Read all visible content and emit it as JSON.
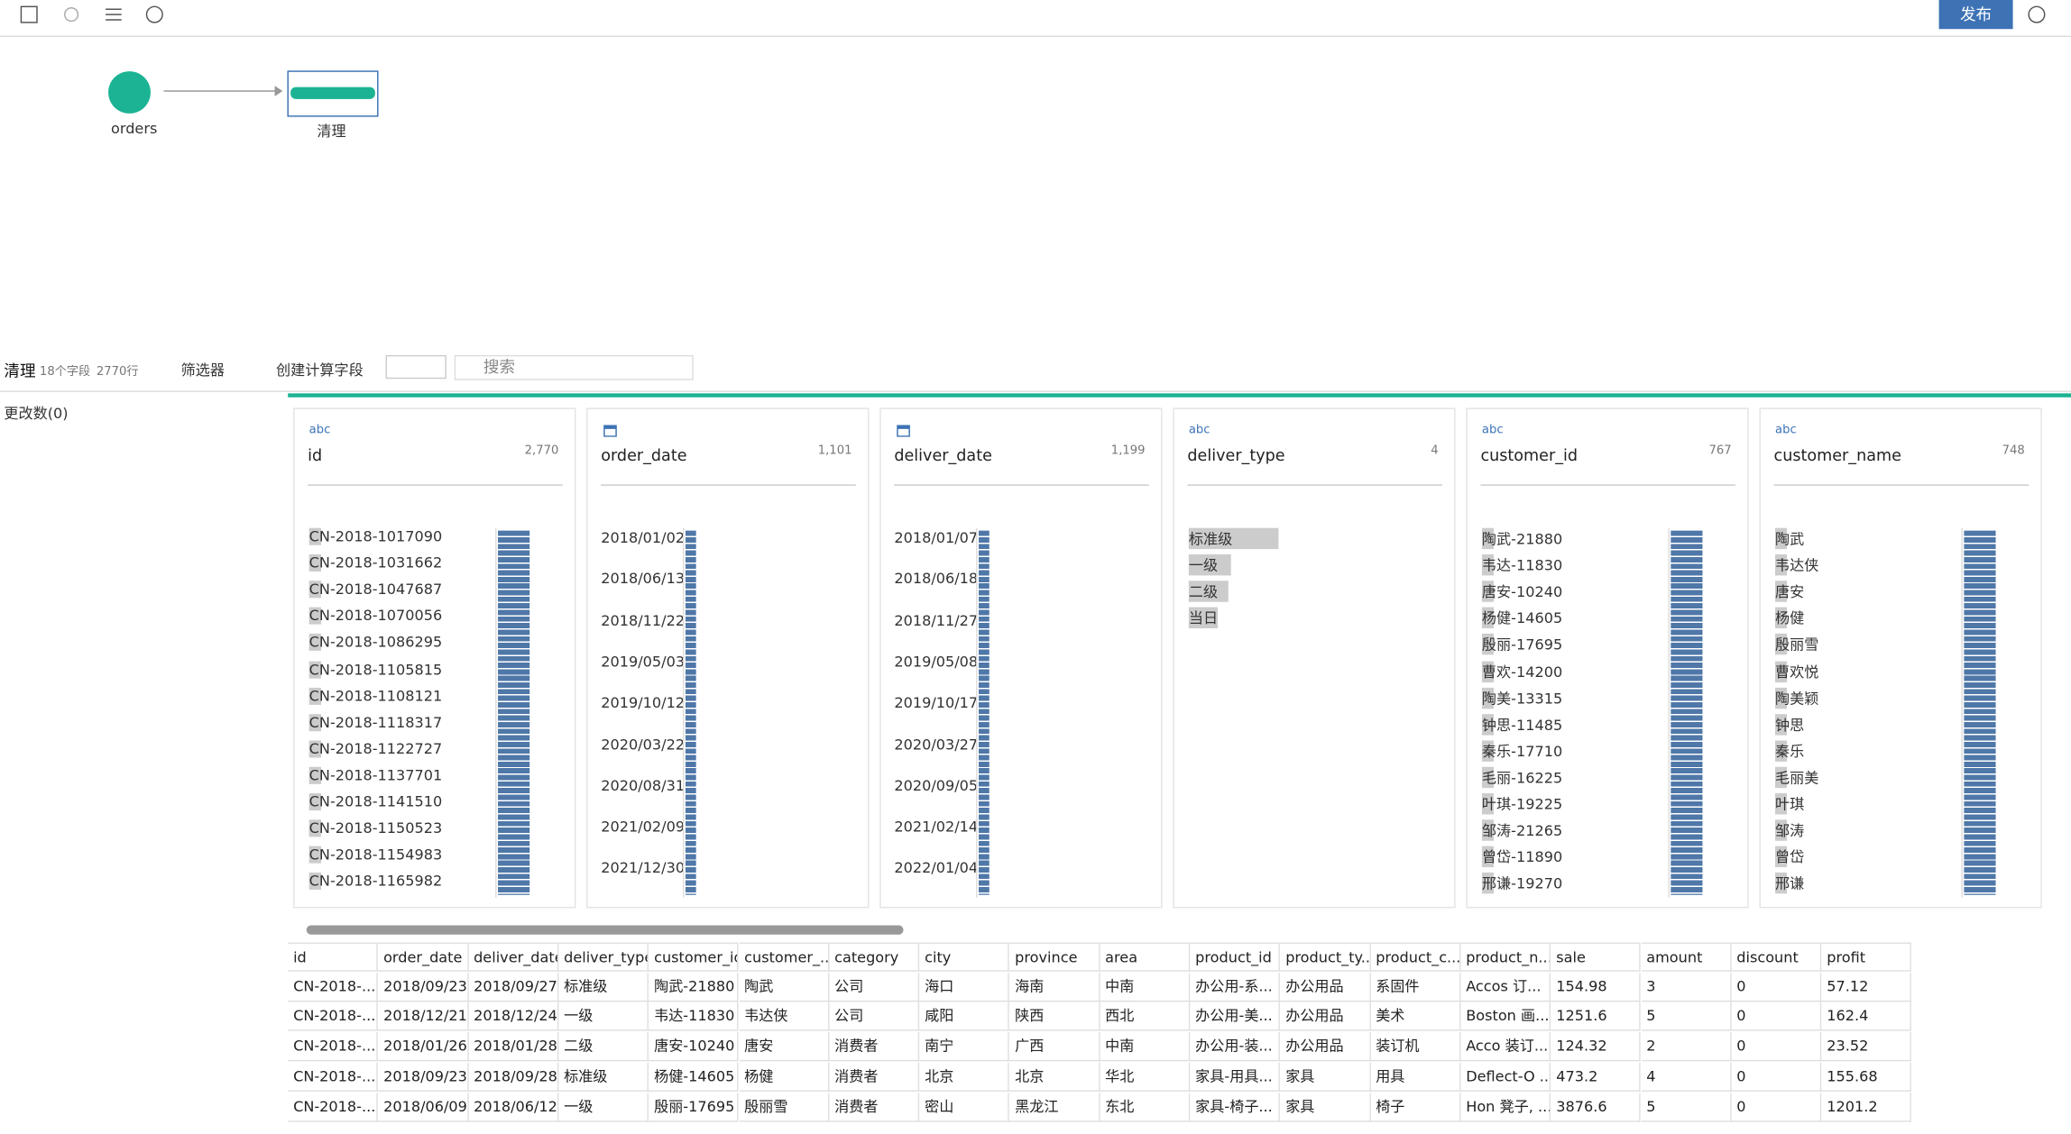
{
  "toolbar": {
    "publish": "发布"
  },
  "flow": {
    "nodes": [
      {
        "label": "orders"
      },
      {
        "label": "清理"
      }
    ]
  },
  "panel": {
    "title": "清理",
    "field_count": "18个字段",
    "row_count": "2770行",
    "filter": "筛选器",
    "calc": "创建计算字段",
    "search_placeholder": "搜索",
    "changes": "更改数(0)"
  },
  "profiles": [
    {
      "type": "abc",
      "name": "id",
      "count": "2,770",
      "values": [
        "CN-2018-1017090",
        "CN-2018-1031662",
        "CN-2018-1047687",
        "CN-2018-1070056",
        "CN-2018-1086295",
        "CN-2018-1105815",
        "CN-2018-1108121",
        "CN-2018-1118317",
        "CN-2018-1122727",
        "CN-2018-1137701",
        "CN-2018-1141510",
        "CN-2018-1150523",
        "CN-2018-1154983",
        "CN-2018-1165982"
      ]
    },
    {
      "type": "date",
      "name": "order_date",
      "count": "1,101",
      "values": [
        "2018/01/02",
        "2018/06/13",
        "2018/11/22",
        "2019/05/03",
        "2019/10/12",
        "2020/03/22",
        "2020/08/31",
        "2021/02/09",
        "2021/12/30"
      ]
    },
    {
      "type": "date",
      "name": "deliver_date",
      "count": "1,199",
      "values": [
        "2018/01/07",
        "2018/06/18",
        "2018/11/27",
        "2019/05/08",
        "2019/10/17",
        "2020/03/27",
        "2020/09/05",
        "2021/02/14",
        "2022/01/04"
      ]
    },
    {
      "type": "abc",
      "name": "deliver_type",
      "count": "4",
      "values": [
        "标准级",
        "一级",
        "二级",
        "当日"
      ]
    },
    {
      "type": "abc",
      "name": "customer_id",
      "count": "767",
      "values": [
        "陶武-21880",
        "韦达-11830",
        "唐安-10240",
        "杨健-14605",
        "殷丽-17695",
        "曹欢-14200",
        "陶美-13315",
        "钟思-11485",
        "秦乐-17710",
        "毛丽-16225",
        "叶琪-19225",
        "邹涛-21265",
        "曾岱-11890",
        "邢谦-19270"
      ]
    },
    {
      "type": "abc",
      "name": "customer_name",
      "count": "748",
      "values": [
        "陶武",
        "韦达侠",
        "唐安",
        "杨健",
        "殷丽雪",
        "曹欢悦",
        "陶美颖",
        "钟思",
        "秦乐",
        "毛丽美",
        "叶琪",
        "邹涛",
        "曾岱",
        "邢谦"
      ]
    }
  ],
  "table": {
    "columns": [
      "id",
      "order_date",
      "deliver_date",
      "deliver_type",
      "customer_id",
      "customer_...",
      "category",
      "city",
      "province",
      "area",
      "product_id",
      "product_ty...",
      "product_c...",
      "product_n...",
      "sale",
      "amount",
      "discount",
      "profit"
    ],
    "rows": [
      [
        "CN-2018-...",
        "2018/09/23",
        "2018/09/27",
        "标准级",
        "陶武-21880",
        "陶武",
        "公司",
        "海口",
        "海南",
        "中南",
        "办公用-系...",
        "办公用品",
        "系固件",
        "Accos 订...",
        "154.98",
        "3",
        "0",
        "57.12"
      ],
      [
        "CN-2018-...",
        "2018/12/21",
        "2018/12/24",
        "一级",
        "韦达-11830",
        "韦达侠",
        "公司",
        "咸阳",
        "陕西",
        "西北",
        "办公用-美...",
        "办公用品",
        "美术",
        "Boston 画...",
        "1251.6",
        "5",
        "0",
        "162.4"
      ],
      [
        "CN-2018-...",
        "2018/01/26",
        "2018/01/28",
        "二级",
        "唐安-10240",
        "唐安",
        "消费者",
        "南宁",
        "广西",
        "中南",
        "办公用-装...",
        "办公用品",
        "装订机",
        "Acco 装订...",
        "124.32",
        "2",
        "0",
        "23.52"
      ],
      [
        "CN-2018-...",
        "2018/09/23",
        "2018/09/28",
        "标准级",
        "杨健-14605",
        "杨健",
        "消费者",
        "北京",
        "北京",
        "华北",
        "家具-用具...",
        "家具",
        "用具",
        "Deflect-O ...",
        "473.2",
        "4",
        "0",
        "155.68"
      ],
      [
        "CN-2018-...",
        "2018/06/09",
        "2018/06/12",
        "一级",
        "殷丽-17695",
        "殷丽雪",
        "消费者",
        "密山",
        "黑龙江",
        "东北",
        "家具-椅子...",
        "家具",
        "椅子",
        "Hon 凳子, ...",
        "3876.6",
        "5",
        "0",
        "1201.2"
      ]
    ]
  }
}
